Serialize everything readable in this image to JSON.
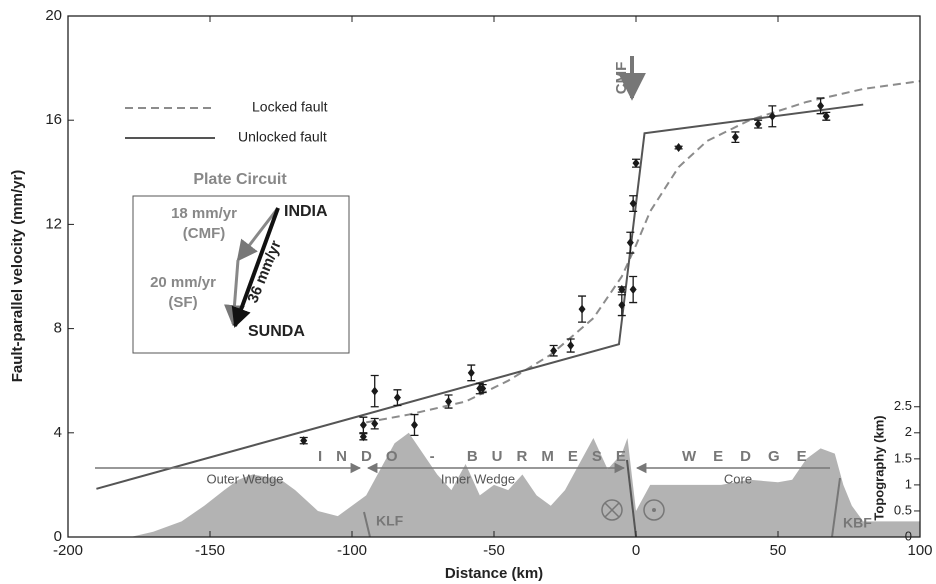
{
  "chart_data": {
    "type": "scatter",
    "xlabel": "Distance (km)",
    "ylabel": "Fault-parallel velocity (mm/yr)",
    "y2label": "Topography (km)",
    "xlim": [
      -200,
      100
    ],
    "ylim": [
      0,
      20
    ],
    "y2lim": [
      0,
      10
    ],
    "xticks": [
      -200,
      -150,
      -100,
      -50,
      0,
      50,
      100
    ],
    "yticks": [
      0,
      4,
      8,
      12,
      16,
      20
    ],
    "y2ticks": [
      0,
      0.5,
      1,
      1.5,
      2,
      2.5
    ],
    "series": [
      {
        "name": "Locked fault",
        "type": "line",
        "style": "dashed",
        "color": "#8c8c8c",
        "x": [
          -95,
          -80,
          -60,
          -45,
          -30,
          -15,
          -5,
          0,
          5,
          15,
          25,
          40,
          60,
          80,
          100
        ],
        "values": [
          4.4,
          4.7,
          5.2,
          6.0,
          7.0,
          8.4,
          10,
          11.2,
          12.5,
          14.2,
          15.2,
          16.0,
          16.7,
          17.2,
          17.5
        ]
      },
      {
        "name": "Unlocked fault",
        "type": "line",
        "style": "solid",
        "color": "#555555",
        "x": [
          -190,
          -6,
          3,
          80
        ],
        "values": [
          1.85,
          7.4,
          15.5,
          16.6
        ]
      },
      {
        "type": "scatter",
        "color": "#1a1a1a",
        "x": [
          -117,
          -96,
          -96,
          -92,
          -92,
          -84,
          -78,
          -66,
          -58,
          -55,
          -54,
          -29,
          -23,
          -19,
          -5,
          -5,
          -2,
          -1,
          -1,
          0,
          15,
          35,
          43,
          48,
          65,
          67
        ],
        "values": [
          3.7,
          3.85,
          4.3,
          4.35,
          5.6,
          5.35,
          4.3,
          5.2,
          6.3,
          5.7,
          5.7,
          7.15,
          7.35,
          8.75,
          9.5,
          8.9,
          11.3,
          9.5,
          12.8,
          14.35,
          14.95,
          15.35,
          15.85,
          16.15,
          16.55,
          16.15
        ],
        "errors": [
          0.12,
          0.12,
          0.3,
          0.2,
          0.6,
          0.3,
          0.4,
          0.25,
          0.3,
          0.2,
          0.15,
          0.2,
          0.25,
          0.5,
          0.1,
          0.4,
          0.4,
          0.5,
          0.3,
          0.15,
          0.05,
          0.2,
          0.15,
          0.4,
          0.3,
          0.15
        ]
      },
      {
        "type": "area",
        "axis": "y2",
        "color": "#b3b3b3",
        "x": [
          -178,
          -170,
          -160,
          -152,
          -145,
          -140,
          -135,
          -125,
          -120,
          -112,
          -105,
          -100,
          -95,
          -90,
          -85,
          -80,
          -75,
          -70,
          -65,
          -60,
          -55,
          -50,
          -45,
          -40,
          -35,
          -30,
          -25,
          -20,
          -15,
          -10,
          -5,
          -3,
          0,
          5,
          10,
          20,
          30,
          40,
          50,
          55,
          60,
          65,
          70,
          73,
          76,
          80,
          90,
          100
        ],
        "values": [
          0,
          0.1,
          0.3,
          0.6,
          0.9,
          1.1,
          1.2,
          1.1,
          0.9,
          0.5,
          0.4,
          0.6,
          0.8,
          1.3,
          1.8,
          2.0,
          1.6,
          1.2,
          0.9,
          1.4,
          0.8,
          1.0,
          0.9,
          1.2,
          0.8,
          0.6,
          0.9,
          1.4,
          1.9,
          1.3,
          1.6,
          1.9,
          0.5,
          1.0,
          1.0,
          1.0,
          1.0,
          1.1,
          1.05,
          1.1,
          1.5,
          1.7,
          1.6,
          1.0,
          0.6,
          0.3,
          0.3,
          0.3
        ]
      }
    ],
    "annotations": {
      "cmf": "CMF",
      "plate_circuit": "Plate Circuit",
      "cmf_rate": "18 mm/yr",
      "cmf_name": "(CMF)",
      "sf_rate": "20 mm/yr",
      "sf_name": "(SF)",
      "total_rate": "36 mm/yr",
      "india": "INDIA",
      "sunda": "SUNDA",
      "indo_burmese": "INDO - BURMESE",
      "wedge": "WEDGE",
      "outer_wedge": "Outer Wedge",
      "inner_wedge": "Inner Wedge",
      "core": "Core",
      "klf": "KLF",
      "kbf": "KBF"
    }
  }
}
